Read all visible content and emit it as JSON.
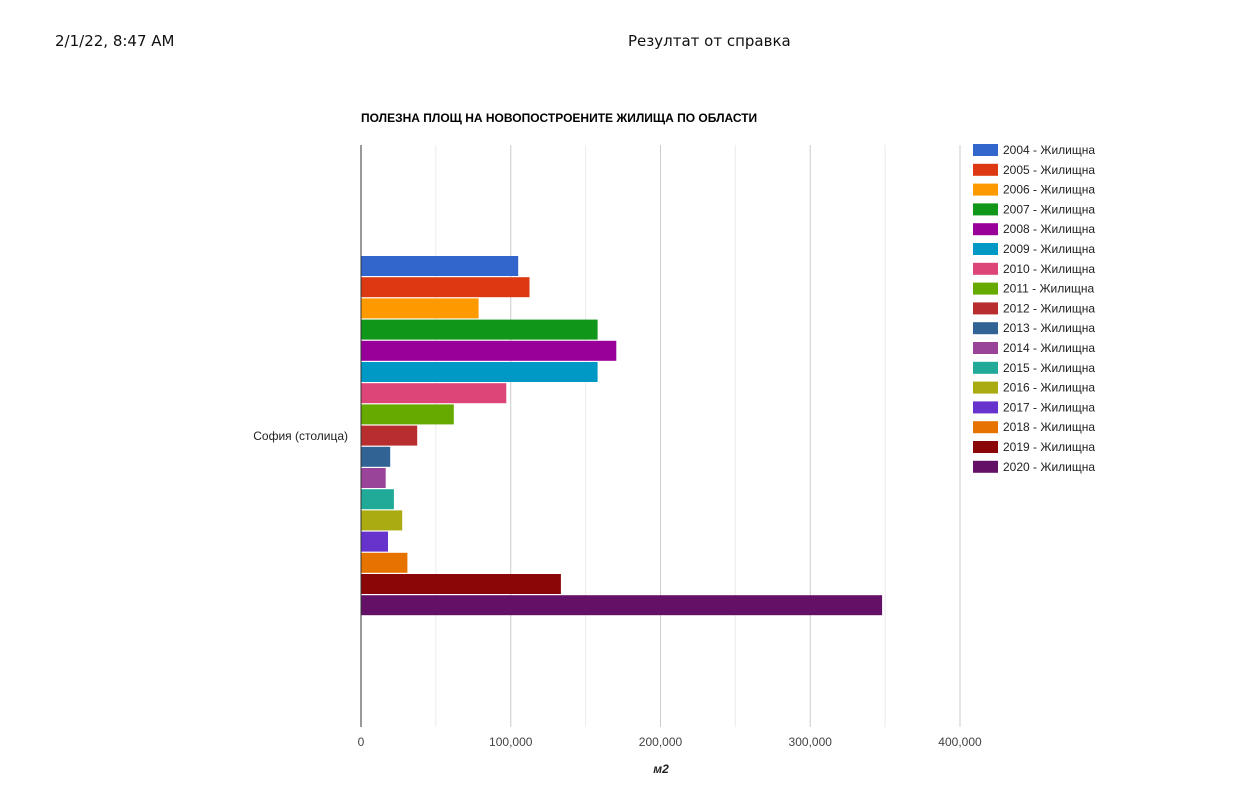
{
  "header": {
    "date": "2/1/22, 8:47 AM",
    "title": "Резултат от справка"
  },
  "chart_data": {
    "type": "bar",
    "orientation": "horizontal",
    "title": "ПОЛЕЗНА ПЛОЩ НА НОВОПОСТРОЕНИТЕ ЖИЛИЩА ПО ОБЛАСТИ",
    "xlabel": "м2",
    "ylabel": "",
    "xlim": [
      0,
      400000
    ],
    "x_ticks": [
      "0",
      "100,000",
      "200,000",
      "300,000",
      "400,000"
    ],
    "x_tick_values": [
      0,
      100000,
      200000,
      300000,
      400000
    ],
    "grid": true,
    "legend_position": "right",
    "categories": [
      "София (столица)"
    ],
    "series": [
      {
        "name": "2004 - Жилищна",
        "color": "#3366cc",
        "values": [
          105000
        ]
      },
      {
        "name": "2005 - Жилищна",
        "color": "#dc3912",
        "values": [
          112500
        ]
      },
      {
        "name": "2006 - Жилищна",
        "color": "#ff9900",
        "values": [
          78500
        ]
      },
      {
        "name": "2007 - Жилищна",
        "color": "#109618",
        "values": [
          158000
        ]
      },
      {
        "name": "2008 - Жилищна",
        "color": "#990099",
        "values": [
          170500
        ]
      },
      {
        "name": "2009 - Жилищна",
        "color": "#0099c6",
        "values": [
          158000
        ]
      },
      {
        "name": "2010 - Жилищна",
        "color": "#dd4477",
        "values": [
          97000
        ]
      },
      {
        "name": "2011 - Жилищна",
        "color": "#66aa00",
        "values": [
          62000
        ]
      },
      {
        "name": "2012 - Жилищна",
        "color": "#b82e2e",
        "values": [
          37500
        ]
      },
      {
        "name": "2013 - Жилищна",
        "color": "#316395",
        "values": [
          19500
        ]
      },
      {
        "name": "2014 - Жилищна",
        "color": "#994499",
        "values": [
          16500
        ]
      },
      {
        "name": "2015 - Жилищна",
        "color": "#22aa99",
        "values": [
          22000
        ]
      },
      {
        "name": "2016 - Жилищна",
        "color": "#aaaa11",
        "values": [
          27500
        ]
      },
      {
        "name": "2017 - Жилищна",
        "color": "#6633cc",
        "values": [
          18000
        ]
      },
      {
        "name": "2018 - Жилищна",
        "color": "#e67300",
        "values": [
          31000
        ]
      },
      {
        "name": "2019 - Жилищна",
        "color": "#8b0707",
        "values": [
          133500
        ]
      },
      {
        "name": "2020 - Жилищна",
        "color": "#651067",
        "values": [
          348000
        ]
      }
    ]
  }
}
